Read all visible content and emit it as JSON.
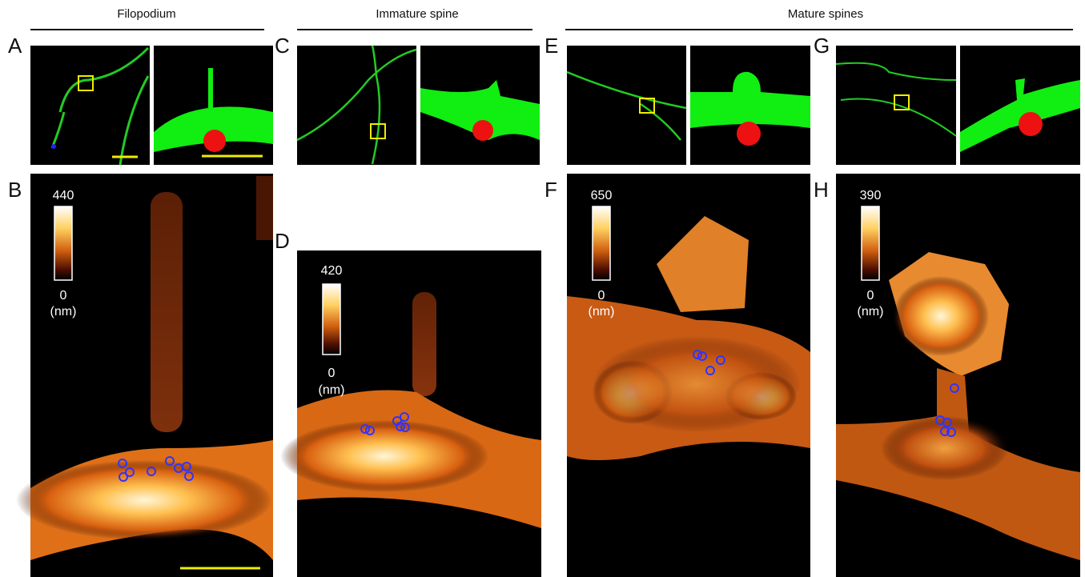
{
  "headers": [
    "Filopodium",
    "Immature spine",
    "Mature spines"
  ],
  "panel_labels": [
    "A",
    "B",
    "C",
    "D",
    "E",
    "F",
    "G",
    "H"
  ],
  "colorbars": [
    {
      "max": 440,
      "min": 0,
      "unit": "(nm)"
    },
    {
      "max": 420,
      "min": 0,
      "unit": "(nm)"
    },
    {
      "max": 650,
      "min": 0,
      "unit": "(nm)"
    },
    {
      "max": 390,
      "min": 0,
      "unit": "(nm)"
    }
  ]
}
